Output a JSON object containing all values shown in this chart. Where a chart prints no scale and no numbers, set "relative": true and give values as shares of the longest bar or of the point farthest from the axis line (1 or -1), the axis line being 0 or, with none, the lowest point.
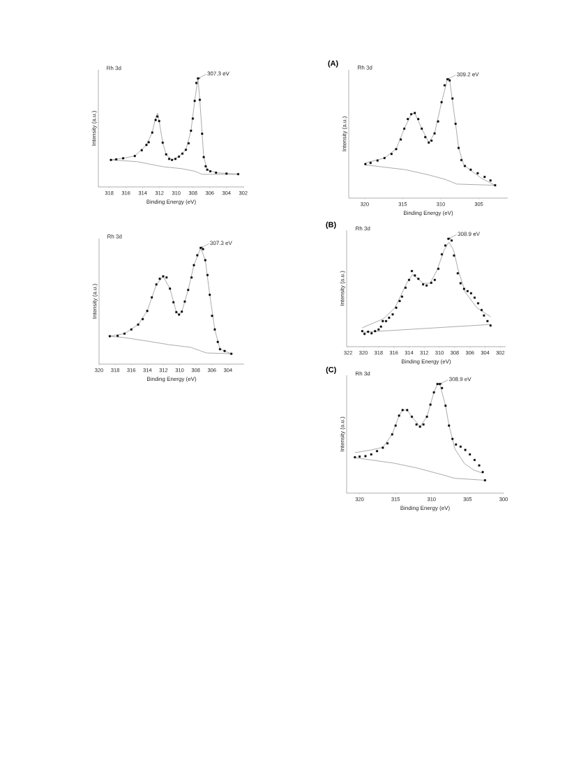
{
  "chart_data": [
    {
      "type": "scatter",
      "relative": true,
      "xlabel": "Binding Energy (eV)",
      "ylabel": "Intensity (a.u.)",
      "xlim": [
        319.3,
        301.9
      ],
      "xticks": [
        318,
        316,
        314,
        312,
        310,
        308,
        306,
        304,
        302
      ],
      "annotations": [
        "Rh 3d",
        {
          "text": "307.3 eV",
          "x": 307.41,
          "y": 1.0
        }
      ],
      "series": [
        {
          "type": "scatter",
          "color": "#000000",
          "marker": "square",
          "x": [
            317.8,
            317.17,
            316.34,
            314.95,
            314.12,
            313.56,
            313.29,
            312.87,
            312.46,
            312.26,
            312.04,
            311.62,
            311.21,
            310.85,
            310.51,
            310.1,
            309.68,
            309.27,
            308.85,
            308.52,
            308.24,
            308.02,
            307.8,
            307.6,
            307.41,
            307.19,
            306.91,
            306.72,
            306.49,
            306.3,
            305.94,
            305.25,
            304.0,
            302.61
          ],
          "values": [
            0.249,
            0.254,
            0.264,
            0.285,
            0.338,
            0.387,
            0.412,
            0.501,
            0.617,
            0.649,
            0.607,
            0.408,
            0.3,
            0.258,
            0.249,
            0.258,
            0.279,
            0.307,
            0.342,
            0.402,
            0.518,
            0.63,
            0.793,
            0.958,
            1.0,
            0.803,
            0.49,
            0.275,
            0.19,
            0.159,
            0.144,
            0.131,
            0.123,
            0.118
          ]
        },
        {
          "type": "line",
          "color": "#a0a0a0",
          "x": [
            317.8,
            316.34,
            314.95,
            313.56,
            312.87,
            312.46,
            312.22,
            312.04,
            311.62,
            311.21,
            310.51,
            309.68,
            308.85,
            308.24,
            307.8,
            307.41,
            307.19,
            306.91,
            306.72,
            306.3,
            305.25,
            302.61
          ],
          "values": [
            0.249,
            0.264,
            0.285,
            0.387,
            0.501,
            0.64,
            0.68,
            0.607,
            0.408,
            0.3,
            0.249,
            0.279,
            0.342,
            0.518,
            0.793,
            1.0,
            0.803,
            0.49,
            0.275,
            0.159,
            0.131,
            0.118
          ]
        },
        {
          "type": "line",
          "color": "#a0a0a0",
          "x": [
            317.8,
            314.67,
            312.18,
            311.35,
            309.41,
            307.75,
            306.91,
            302.56
          ],
          "values": [
            0.249,
            0.233,
            0.195,
            0.184,
            0.169,
            0.144,
            0.116,
            0.116
          ]
        }
      ]
    },
    {
      "type": "scatter",
      "relative": true,
      "xlabel": "Binding Energy (eV)",
      "ylabel": "Intensity (a.u.)",
      "xlim": [
        320,
        302
      ],
      "xticks": [
        320,
        318,
        316,
        314,
        312,
        310,
        308,
        306,
        304
      ],
      "annotations": [
        "Rh 3d",
        {
          "text": "307.3 eV",
          "x": 307.39,
          "y": 1.0
        }
      ],
      "series": [
        {
          "type": "scatter",
          "color": "#000000",
          "marker": "square",
          "x": [
            318.67,
            317.69,
            316.84,
            315.99,
            315.15,
            314.58,
            314.02,
            313.45,
            312.89,
            312.47,
            312.04,
            311.62,
            311.2,
            310.77,
            310.41,
            310.07,
            309.73,
            309.36,
            308.94,
            308.52,
            308.23,
            307.81,
            307.39,
            307.1,
            306.82,
            306.54,
            306.26,
            305.98,
            305.64,
            305.27,
            304.99,
            304.42,
            303.58
          ],
          "values": [
            0.24,
            0.243,
            0.262,
            0.298,
            0.34,
            0.387,
            0.457,
            0.574,
            0.685,
            0.734,
            0.755,
            0.745,
            0.649,
            0.532,
            0.447,
            0.426,
            0.451,
            0.538,
            0.638,
            0.745,
            0.851,
            0.936,
            1.0,
            0.989,
            0.894,
            0.766,
            0.596,
            0.415,
            0.298,
            0.191,
            0.128,
            0.113,
            0.089
          ]
        },
        {
          "type": "line",
          "color": "#a0a0a0",
          "x": [
            318.67,
            316.84,
            315.15,
            314.02,
            312.89,
            312.04,
            311.2,
            310.41,
            310.07,
            309.73,
            308.94,
            308.23,
            307.39,
            306.82,
            306.26,
            305.64,
            304.99,
            303.58
          ],
          "values": [
            0.24,
            0.262,
            0.34,
            0.457,
            0.685,
            0.755,
            0.649,
            0.447,
            0.426,
            0.451,
            0.638,
            0.851,
            1.0,
            0.894,
            0.596,
            0.298,
            0.128,
            0.089
          ]
        },
        {
          "type": "line",
          "color": "#a0a0a0",
          "x": [
            318.67,
            316.84,
            314.02,
            311.2,
            308.66,
            306.68,
            303.58
          ],
          "values": [
            0.24,
            0.228,
            0.198,
            0.166,
            0.145,
            0.096,
            0.089
          ]
        }
      ]
    },
    {
      "type": "scatter",
      "relative": true,
      "title": "(A)",
      "xlabel": "Binding Energy (eV)",
      "ylabel": "Intensity (a.u.)",
      "xlim": [
        322.1,
        301.2
      ],
      "xticks": [
        320,
        315,
        310,
        305
      ],
      "annotations": [
        "Rh 3d",
        {
          "text": "309.2 eV",
          "x": 309.13,
          "y": 1.0
        }
      ],
      "series": [
        {
          "type": "scatter",
          "color": "#000000",
          "marker": "square",
          "x": [
            319.91,
            319.23,
            318.32,
            317.4,
            316.48,
            315.87,
            315.26,
            314.8,
            314.34,
            313.88,
            313.42,
            312.96,
            312.5,
            312.04,
            311.58,
            311.22,
            310.82,
            310.36,
            309.9,
            309.5,
            309.13,
            308.83,
            308.46,
            308.06,
            307.66,
            307.3,
            306.84,
            306.07,
            305.15,
            304.24,
            303.47,
            302.86
          ],
          "values": [
            0.286,
            0.296,
            0.316,
            0.337,
            0.371,
            0.412,
            0.493,
            0.584,
            0.665,
            0.706,
            0.716,
            0.665,
            0.584,
            0.513,
            0.467,
            0.483,
            0.544,
            0.645,
            0.807,
            0.949,
            1.0,
            0.99,
            0.838,
            0.625,
            0.422,
            0.32,
            0.27,
            0.239,
            0.209,
            0.178,
            0.148,
            0.108
          ]
        },
        {
          "type": "line",
          "color": "#a0a0a0",
          "x": [
            319.91,
            317.4,
            315.87,
            314.8,
            313.88,
            313.42,
            312.5,
            311.58,
            310.82,
            309.9,
            309.13,
            308.83,
            308.06,
            307.66,
            306.99,
            305.77,
            304.54,
            302.86
          ],
          "values": [
            0.296,
            0.337,
            0.412,
            0.584,
            0.706,
            0.716,
            0.584,
            0.467,
            0.544,
            0.807,
            1.0,
            0.99,
            0.625,
            0.422,
            0.28,
            0.219,
            0.162,
            0.108
          ]
        },
        {
          "type": "line",
          "color": "#a0a0a0",
          "x": [
            319.91,
            317.4,
            314.64,
            311.58,
            309.44,
            307.91,
            302.86
          ],
          "values": [
            0.28,
            0.26,
            0.239,
            0.195,
            0.158,
            0.118,
            0.108
          ]
        }
      ]
    },
    {
      "type": "scatter",
      "relative": true,
      "title": "(B)",
      "xlabel": "Binding Energy (eV)",
      "ylabel": "Intensity (a.u.)",
      "xlim": [
        322.2,
        301.3
      ],
      "xticks": [
        322,
        320,
        318,
        316,
        314,
        312,
        310,
        308,
        306,
        304,
        302
      ],
      "annotations": [
        "Rh 3d",
        {
          "text": "308.9 eV",
          "x": 308.83,
          "y": 1.0
        }
      ],
      "series": [
        {
          "type": "scatter",
          "color": "#000000",
          "marker": "square",
          "x": [
            320.15,
            319.85,
            319.38,
            318.92,
            318.46,
            318.0,
            317.69,
            317.45,
            317.02,
            316.62,
            316.15,
            315.69,
            315.23,
            314.92,
            314.46,
            314.0,
            313.63,
            313.23,
            312.77,
            312.15,
            311.69,
            311.08,
            310.62,
            310.15,
            309.69,
            309.23,
            308.83,
            308.4,
            308.09,
            307.6,
            307.23,
            306.77,
            306.31,
            305.85,
            305.38,
            304.92,
            304.46,
            304.15,
            303.69,
            303.29
          ],
          "values": [
            0.144,
            0.118,
            0.138,
            0.124,
            0.144,
            0.159,
            0.186,
            0.237,
            0.237,
            0.268,
            0.299,
            0.361,
            0.423,
            0.464,
            0.546,
            0.619,
            0.701,
            0.66,
            0.629,
            0.577,
            0.567,
            0.592,
            0.619,
            0.722,
            0.856,
            0.938,
            1.0,
            0.984,
            0.845,
            0.68,
            0.588,
            0.536,
            0.515,
            0.495,
            0.454,
            0.402,
            0.34,
            0.289,
            0.237,
            0.196
          ]
        },
        {
          "type": "line",
          "color": "#a0a0a0",
          "x": [
            320.15,
            317.38,
            315.85,
            314.31,
            313.54,
            312.15,
            311.23,
            310.31,
            309.38,
            308.77,
            308.15,
            307.54,
            306.62,
            305.08,
            303.29
          ],
          "values": [
            0.175,
            0.258,
            0.361,
            0.588,
            0.67,
            0.588,
            0.588,
            0.711,
            0.897,
            0.969,
            0.897,
            0.711,
            0.505,
            0.361,
            0.278
          ]
        },
        {
          "type": "line",
          "color": "#a0a0a0",
          "x": [
            320.0,
            303.29
          ],
          "values": [
            0.134,
            0.206
          ]
        }
      ]
    },
    {
      "type": "scatter",
      "relative": true,
      "title": "(C)",
      "xlabel": "Binding Energy (eV)",
      "ylabel": "Intensity (a.u.)",
      "xlim": [
        321.8,
        300
      ],
      "xticks": [
        320,
        315,
        310,
        305,
        300
      ],
      "annotations": [
        "Rh 3d",
        {
          "text": "308.9 eV",
          "x": 308.87,
          "y": 1.0
        }
      ],
      "series": [
        {
          "type": "scatter",
          "color": "#000000",
          "marker": "square",
          "x": [
            320.65,
            320.0,
            319.19,
            318.39,
            317.58,
            316.77,
            316.13,
            315.48,
            315.0,
            314.52,
            314.03,
            313.39,
            312.74,
            312.1,
            311.61,
            311.13,
            310.65,
            310.16,
            309.68,
            309.19,
            308.87,
            308.55,
            308.06,
            307.58,
            307.1,
            306.61,
            305.97,
            305.32,
            304.68,
            304.03,
            303.39,
            302.9,
            302.58
          ],
          "values": [
            0.329,
            0.335,
            0.339,
            0.355,
            0.385,
            0.416,
            0.456,
            0.538,
            0.619,
            0.71,
            0.761,
            0.761,
            0.7,
            0.629,
            0.609,
            0.629,
            0.7,
            0.811,
            0.923,
            1.0,
            1.0,
            0.963,
            0.801,
            0.619,
            0.497,
            0.446,
            0.426,
            0.396,
            0.355,
            0.304,
            0.254,
            0.193,
            0.118
          ]
        },
        {
          "type": "line",
          "color": "#a0a0a0",
          "x": [
            320.65,
            318.39,
            316.77,
            315.48,
            314.52,
            314.03,
            313.39,
            312.74,
            311.61,
            310.65,
            309.68,
            309.19,
            308.87,
            308.06,
            307.58,
            307.1,
            306.77,
            305.48,
            304.19,
            302.9
          ],
          "values": [
            0.371,
            0.396,
            0.42,
            0.538,
            0.71,
            0.761,
            0.761,
            0.7,
            0.609,
            0.7,
            0.923,
            1.0,
            1.0,
            0.801,
            0.619,
            0.497,
            0.406,
            0.274,
            0.213,
            0.183
          ]
        },
        {
          "type": "line",
          "color": "#a0a0a0",
          "x": [
            320.65,
            318.39,
            315.16,
            311.94,
            308.71,
            306.77,
            302.58
          ],
          "values": [
            0.325,
            0.304,
            0.274,
            0.229,
            0.172,
            0.136,
            0.118
          ]
        }
      ]
    }
  ]
}
